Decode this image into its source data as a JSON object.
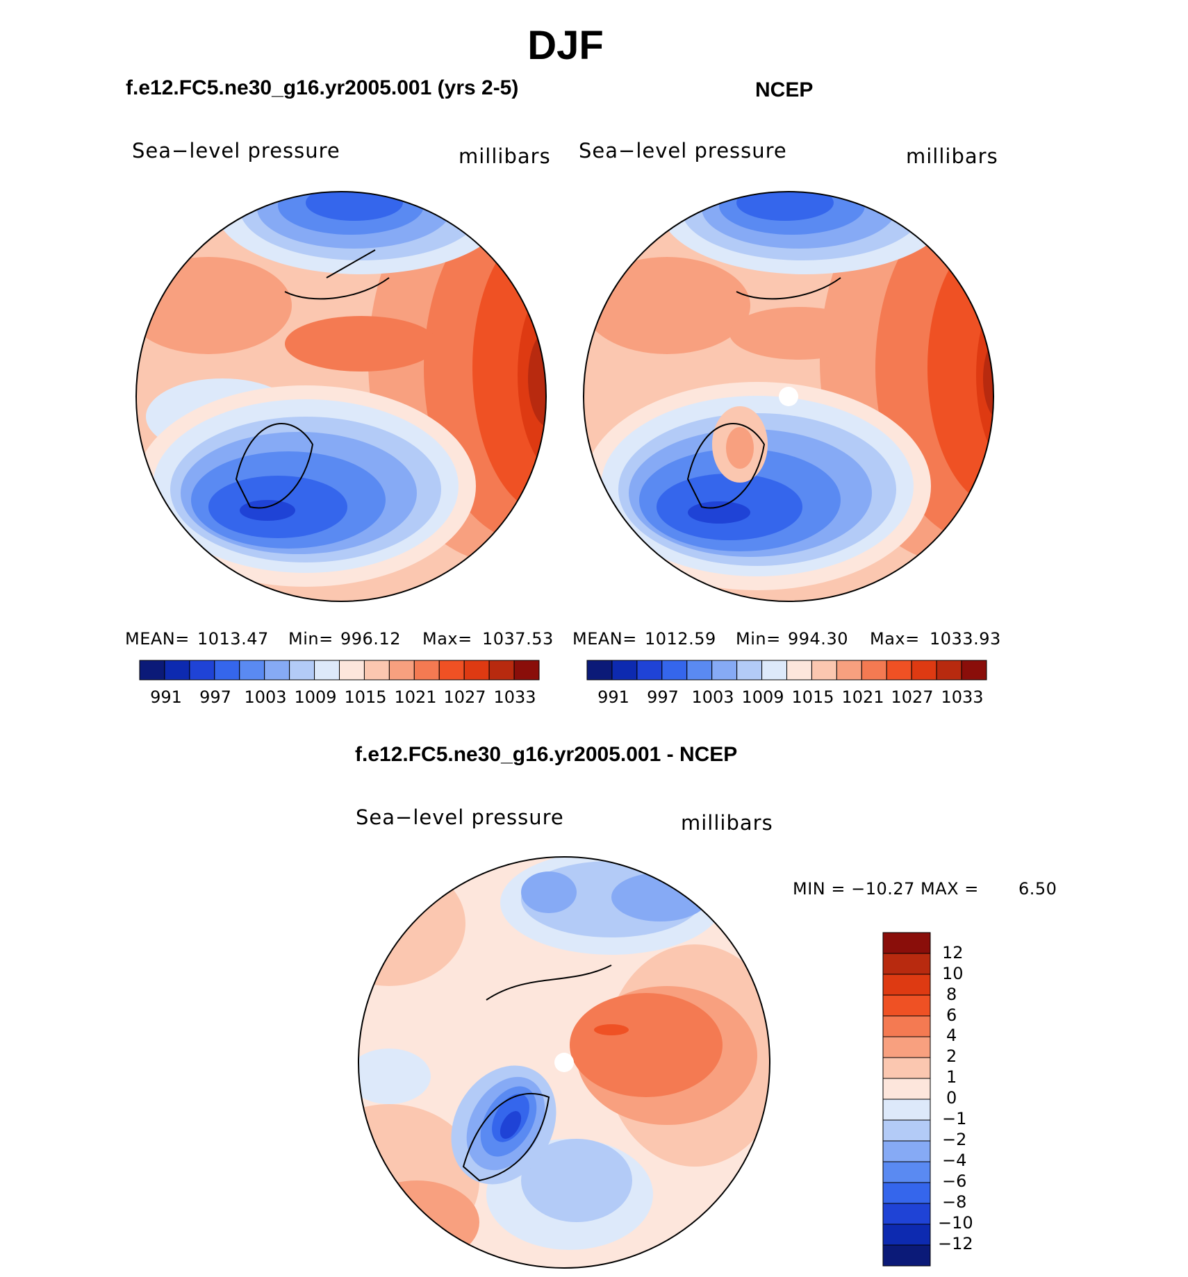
{
  "title": "DJF",
  "panels": [
    {
      "heading": "f.e12.FC5.ne30_g16.yr2005.001 (yrs 2-5)",
      "variable": "Sea−level pressure",
      "units": "millibars",
      "mean_label": "MEAN=",
      "mean": "1013.47",
      "min_label": "Min=",
      "min": "996.12",
      "max_label": "Max=",
      "max": "1037.53"
    },
    {
      "heading": "NCEP",
      "variable": "Sea−level pressure",
      "units": "millibars",
      "mean_label": "MEAN=",
      "mean": "1012.59",
      "min_label": "Min=",
      "min": "994.30",
      "max_label": "Max=",
      "max": "1033.93"
    }
  ],
  "shared_colorbar": {
    "ticks": [
      "991",
      "997",
      "1003",
      "1009",
      "1015",
      "1021",
      "1027",
      "1033"
    ],
    "colors": [
      "#0b1a78",
      "#0d2ab0",
      "#1f43d6",
      "#3566ec",
      "#5a8af2",
      "#86aaf5",
      "#b3cbf7",
      "#dde9fa",
      "#fde6dc",
      "#fbc7b0",
      "#f8a07f",
      "#f47a52",
      "#ef5124",
      "#de3a12",
      "#b82a0f",
      "#8a0e0a"
    ]
  },
  "difference": {
    "heading": "f.e12.FC5.ne30_g16.yr2005.001 - NCEP",
    "variable": "Sea−level pressure",
    "units": "millibars",
    "minmax_text": "MIN = −10.27 MAX =",
    "max_value": "6.50",
    "colorbar": {
      "ticks": [
        "12",
        "10",
        "8",
        "6",
        "4",
        "2",
        "1",
        "0",
        "−1",
        "−2",
        "−4",
        "−6",
        "−8",
        "−10",
        "−12"
      ],
      "colors": [
        "#8a0e0a",
        "#b82a0f",
        "#de3a12",
        "#ef5124",
        "#f47a52",
        "#f8a07f",
        "#fbc7b0",
        "#fde6dc",
        "#dde9fa",
        "#b3cbf7",
        "#86aaf5",
        "#5a8af2",
        "#3566ec",
        "#1f43d6",
        "#0d2ab0",
        "#0b1a78"
      ]
    }
  }
}
